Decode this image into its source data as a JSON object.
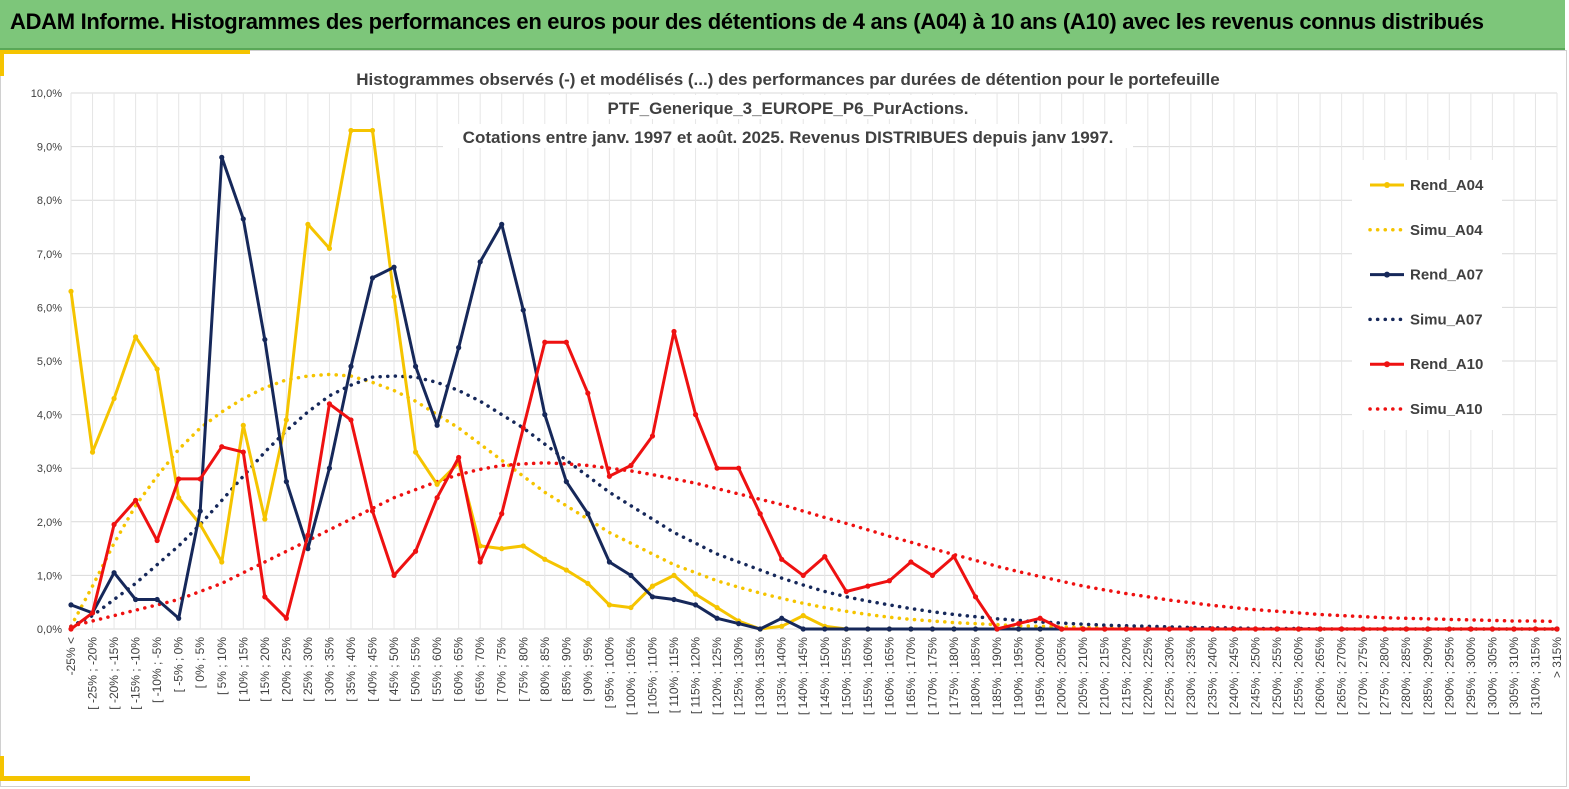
{
  "banner": {
    "title": "ADAM Informe. Histogrammes des performances en euros pour des détentions de 4 ans (A04) à 10 ans (A10) avec les revenus connus distribués"
  },
  "colors": {
    "banner_bg": "#7dc67a",
    "accent": "#f5c400",
    "A04": "#f5c400",
    "A07": "#16285a",
    "A10": "#ee1111"
  },
  "chart_data": {
    "type": "line",
    "title_lines": [
      "Histogrammes observés (-) et modélisés (...) des performances par durées de détention pour le portefeuille",
      "PTF_Generique_3_EUROPE_P6_PurActions.",
      "Cotations entre janv. 1997 et août. 2025. Revenus DISTRIBUES depuis janv 1997."
    ],
    "ylim": [
      0,
      10
    ],
    "yticks": [
      "0,0%",
      "1,0%",
      "2,0%",
      "3,0%",
      "4,0%",
      "5,0%",
      "6,0%",
      "7,0%",
      "8,0%",
      "9,0%",
      "10,0%"
    ],
    "grid": true,
    "legend_position": "right",
    "categories": [
      "-25% <",
      "[ -25% ; -20%",
      "[ -20% ; -15%",
      "[ -15% ; -10%",
      "[ -10% ; -5%",
      "[ -5% ; 0%",
      "[ 0% ; 5%",
      "[ 5% ; 10%",
      "[ 10% ; 15%",
      "[ 15% ; 20%",
      "[ 20% ; 25%",
      "[ 25% ; 30%",
      "[ 30% ; 35%",
      "[ 35% ; 40%",
      "[ 40% ; 45%",
      "[ 45% ; 50%",
      "[ 50% ; 55%",
      "[ 55% ; 60%",
      "[ 60% ; 65%",
      "[ 65% ; 70%",
      "[ 70% ; 75%",
      "[ 75% ; 80%",
      "[ 80% ; 85%",
      "[ 85% ; 90%",
      "[ 90% ; 95%",
      "[ 95% ; 100%",
      "[ 100% ; 105%",
      "[ 105% ; 110%",
      "[ 110% ; 115%",
      "[ 115% ; 120%",
      "[ 120% ; 125%",
      "[ 125% ; 130%",
      "[ 130% ; 135%",
      "[ 135% ; 140%",
      "[ 140% ; 145%",
      "[ 145% ; 150%",
      "[ 150% ; 155%",
      "[ 155% ; 160%",
      "[ 160% ; 165%",
      "[ 165% ; 170%",
      "[ 170% ; 175%",
      "[ 175% ; 180%",
      "[ 180% ; 185%",
      "[ 185% ; 190%",
      "[ 190% ; 195%",
      "[ 195% ; 200%",
      "[ 200% ; 205%",
      "[ 205% ; 210%",
      "[ 210% ; 215%",
      "[ 215% ; 220%",
      "[ 220% ; 225%",
      "[ 225% ; 230%",
      "[ 230% ; 235%",
      "[ 235% ; 240%",
      "[ 240% ; 245%",
      "[ 245% ; 250%",
      "[ 250% ; 255%",
      "[ 255% ; 260%",
      "[ 260% ; 265%",
      "[ 265% ; 270%",
      "[ 270% ; 275%",
      "[ 275% ; 280%",
      "[ 280% ; 285%",
      "[ 285% ; 290%",
      "[ 290% ; 295%",
      "[ 295% ; 300%",
      "[ 300% ; 305%",
      "[ 305% ; 310%",
      "[ 310% ; 315%",
      "> 315%"
    ],
    "series": [
      {
        "name": "Rend_A04",
        "style": "solid-marker",
        "color": "#f5c400",
        "values": [
          6.3,
          3.3,
          4.3,
          5.45,
          4.85,
          2.45,
          1.95,
          1.25,
          3.8,
          2.05,
          3.9,
          7.55,
          7.1,
          9.3,
          9.3,
          6.2,
          3.3,
          2.7,
          3.1,
          1.55,
          1.5,
          1.55,
          1.3,
          1.1,
          0.85,
          0.45,
          0.4,
          0.8,
          1.0,
          0.65,
          0.4,
          0.15,
          0.0,
          0.05,
          0.25,
          0.05,
          0,
          0,
          0,
          0,
          0,
          0,
          0,
          0,
          0,
          0,
          0,
          0,
          0,
          0,
          0,
          0,
          0,
          0,
          0,
          0,
          0,
          0,
          0,
          0,
          0,
          0,
          0,
          0,
          0,
          0,
          0,
          0,
          0,
          0
        ]
      },
      {
        "name": "Simu_A04",
        "style": "dotted",
        "color": "#f5c400",
        "values": [
          0.05,
          0.8,
          1.6,
          2.3,
          2.85,
          3.35,
          3.75,
          4.05,
          4.3,
          4.5,
          4.65,
          4.72,
          4.75,
          4.72,
          4.6,
          4.45,
          4.25,
          4.0,
          3.75,
          3.45,
          3.15,
          2.85,
          2.55,
          2.3,
          2.05,
          1.8,
          1.6,
          1.4,
          1.2,
          1.05,
          0.9,
          0.78,
          0.67,
          0.57,
          0.48,
          0.4,
          0.33,
          0.27,
          0.22,
          0.18,
          0.15,
          0.12,
          0.1,
          0.08,
          0.06,
          0.05,
          0.04,
          0.03,
          0.02,
          0.02,
          0.01,
          0.01,
          0.01,
          0,
          0,
          0,
          0,
          0,
          0,
          0,
          0,
          0,
          0,
          0,
          0,
          0,
          0,
          0,
          0,
          0
        ]
      },
      {
        "name": "Rend_A07",
        "style": "solid-marker",
        "color": "#16285a",
        "values": [
          0.45,
          0.3,
          1.05,
          0.55,
          0.55,
          0.2,
          2.2,
          8.8,
          7.65,
          5.4,
          2.75,
          1.5,
          3.0,
          4.9,
          6.55,
          6.75,
          4.9,
          3.8,
          5.25,
          6.85,
          7.55,
          5.95,
          4.0,
          2.75,
          2.15,
          1.25,
          1.0,
          0.6,
          0.55,
          0.45,
          0.2,
          0.1,
          0.0,
          0.2,
          0.0,
          0.0,
          0,
          0,
          0,
          0,
          0,
          0,
          0,
          0,
          0,
          0,
          0,
          0,
          0,
          0,
          0,
          0,
          0,
          0,
          0,
          0,
          0,
          0,
          0,
          0,
          0,
          0,
          0,
          0,
          0,
          0,
          0,
          0,
          0,
          0
        ]
      },
      {
        "name": "Simu_A07",
        "style": "dotted",
        "color": "#16285a",
        "values": [
          0.05,
          0.25,
          0.55,
          0.85,
          1.2,
          1.55,
          1.95,
          2.4,
          2.85,
          3.3,
          3.7,
          4.05,
          4.35,
          4.55,
          4.7,
          4.72,
          4.7,
          4.6,
          4.45,
          4.25,
          4.0,
          3.75,
          3.45,
          3.15,
          2.85,
          2.55,
          2.3,
          2.05,
          1.8,
          1.6,
          1.4,
          1.25,
          1.1,
          0.95,
          0.82,
          0.7,
          0.6,
          0.52,
          0.45,
          0.38,
          0.32,
          0.27,
          0.23,
          0.19,
          0.16,
          0.13,
          0.11,
          0.09,
          0.07,
          0.06,
          0.05,
          0.04,
          0.03,
          0.02,
          0.02,
          0.01,
          0.01,
          0.01,
          0,
          0,
          0,
          0,
          0,
          0,
          0,
          0,
          0,
          0,
          0,
          0
        ]
      },
      {
        "name": "Rend_A10",
        "style": "solid-marker",
        "color": "#ee1111",
        "values": [
          0.0,
          0.3,
          1.95,
          2.4,
          1.65,
          2.8,
          2.8,
          3.4,
          3.3,
          0.6,
          0.2,
          1.75,
          4.2,
          3.9,
          2.2,
          1.0,
          1.45,
          2.45,
          3.2,
          1.25,
          2.15,
          3.75,
          5.35,
          5.35,
          4.4,
          2.85,
          3.05,
          3.6,
          5.55,
          4.0,
          3.0,
          3.0,
          2.15,
          1.3,
          1.0,
          1.35,
          0.7,
          0.8,
          0.9,
          1.25,
          1.0,
          1.35,
          0.6,
          0.0,
          0.1,
          0.2,
          0.0,
          0,
          0,
          0,
          0,
          0,
          0,
          0,
          0,
          0,
          0,
          0,
          0,
          0,
          0,
          0,
          0,
          0,
          0,
          0,
          0,
          0,
          0,
          0
        ]
      },
      {
        "name": "Simu_A10",
        "style": "dotted",
        "color": "#ee1111",
        "values": [
          0.05,
          0.15,
          0.25,
          0.35,
          0.45,
          0.55,
          0.7,
          0.85,
          1.05,
          1.25,
          1.45,
          1.65,
          1.85,
          2.05,
          2.25,
          2.45,
          2.6,
          2.75,
          2.88,
          2.98,
          3.05,
          3.08,
          3.1,
          3.08,
          3.05,
          3.0,
          2.95,
          2.88,
          2.8,
          2.72,
          2.62,
          2.52,
          2.42,
          2.32,
          2.2,
          2.08,
          1.97,
          1.85,
          1.73,
          1.62,
          1.5,
          1.39,
          1.28,
          1.17,
          1.07,
          0.98,
          0.89,
          0.8,
          0.73,
          0.66,
          0.6,
          0.54,
          0.49,
          0.44,
          0.4,
          0.36,
          0.33,
          0.3,
          0.27,
          0.25,
          0.23,
          0.21,
          0.2,
          0.19,
          0.18,
          0.17,
          0.16,
          0.15,
          0.15,
          0.14
        ]
      }
    ]
  }
}
